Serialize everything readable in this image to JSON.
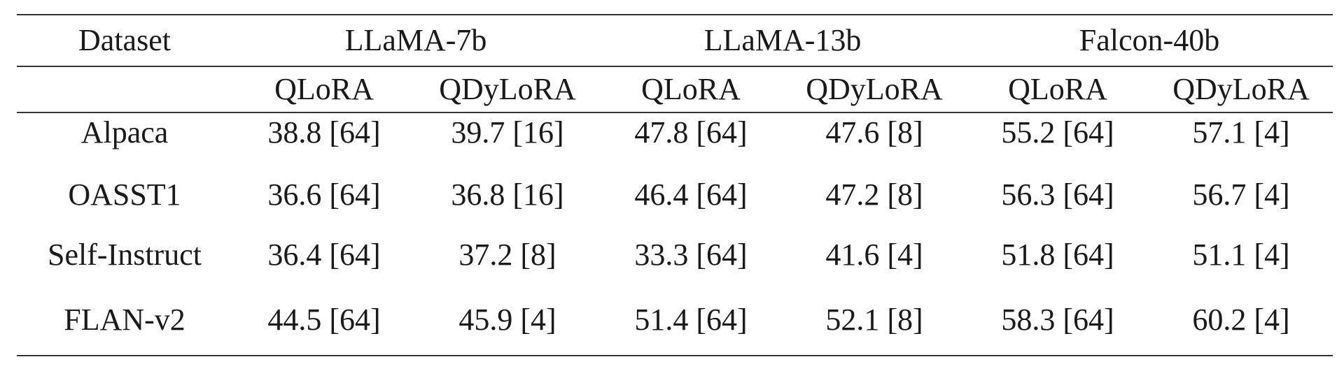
{
  "header": {
    "dataset_label": "Dataset",
    "model_groups": [
      "LLaMA-7b",
      "LLaMA-13b",
      "Falcon-40b"
    ],
    "methods": [
      "QLoRA",
      "QDyLoRA",
      "QLoRA",
      "QDyLoRA",
      "QLoRA",
      "QDyLoRA"
    ]
  },
  "rows": [
    {
      "dataset": "Alpaca",
      "cells": [
        "38.8 [64]",
        "39.7 [16]",
        "47.8 [64]",
        "47.6 [8]",
        "55.2 [64]",
        "57.1 [4]"
      ]
    },
    {
      "dataset": "OASST1",
      "cells": [
        "36.6 [64]",
        "36.8 [16]",
        "46.4 [64]",
        "47.2 [8]",
        "56.3 [64]",
        "56.7 [4]"
      ]
    },
    {
      "dataset": "Self-Instruct",
      "cells": [
        "36.4 [64]",
        "37.2 [8]",
        "33.3 [64]",
        "41.6 [4]",
        "51.8 [64]",
        "51.1 [4]"
      ]
    },
    {
      "dataset": "FLAN-v2",
      "cells": [
        "44.5 [64]",
        "45.9 [4]",
        "51.4 [64]",
        "52.1 [8]",
        "58.3 [64]",
        "60.2 [4]"
      ]
    }
  ]
}
